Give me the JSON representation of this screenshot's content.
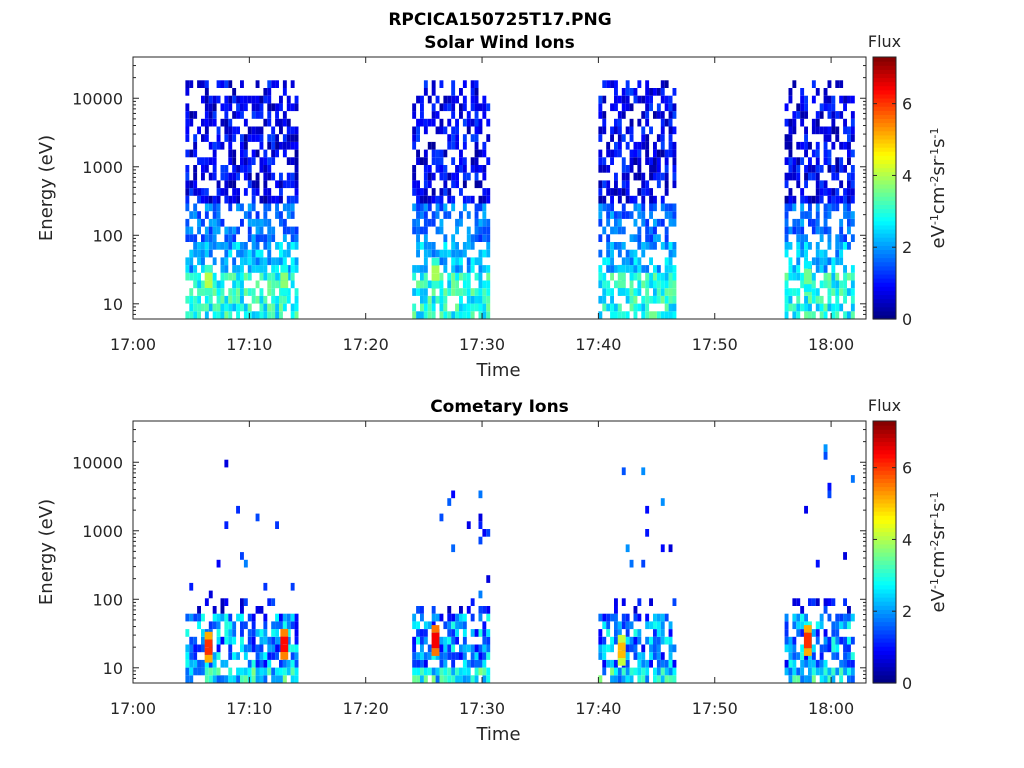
{
  "figure_title": "RPCICA150725T17.PNG",
  "panels": [
    {
      "title": "Solar Wind Ions",
      "ylabel": "Energy (eV)",
      "xlabel": "Time",
      "xticks": [
        "17:00",
        "17:10",
        "17:20",
        "17:30",
        "17:40",
        "17:50",
        "18:00"
      ],
      "yticks": [
        "10",
        "100",
        "1000",
        "10000"
      ],
      "colorbar": {
        "title": "Flux",
        "ticks": [
          "0",
          "2",
          "4",
          "6"
        ]
      }
    },
    {
      "title": "Cometary Ions",
      "ylabel": "Energy (eV)",
      "xlabel": "Time",
      "xticks": [
        "17:00",
        "17:10",
        "17:20",
        "17:30",
        "17:40",
        "17:50",
        "18:00"
      ],
      "yticks": [
        "10",
        "100",
        "1000",
        "10000"
      ],
      "colorbar": {
        "title": "Flux",
        "ticks": [
          "0",
          "2",
          "4",
          "6"
        ]
      }
    }
  ],
  "colorbar_units": [
    "eV",
    "-1",
    "cm",
    "-2",
    "sr",
    "-1",
    "s",
    "-1"
  ],
  "chart_data": [
    {
      "type": "heatmap",
      "title": "Solar Wind Ions",
      "xlabel": "Time",
      "ylabel": "Energy (eV)",
      "x_range": [
        "17:00",
        "18:03"
      ],
      "y_range_ev": [
        6,
        40000
      ],
      "y_scale": "log",
      "color_range": [
        0,
        7.3
      ],
      "colormap": "jet",
      "measurement_intervals": [
        [
          "17:04.5",
          "17:14"
        ],
        [
          "17:24",
          "17:30.5"
        ],
        [
          "17:40",
          "17:46.5"
        ],
        [
          "17:56",
          "18:02"
        ]
      ],
      "high_flux_spots": [
        {
          "time": "17:06.5",
          "energy_ev": 22,
          "flux": 4.5
        },
        {
          "time": "17:13",
          "energy_ev": 22,
          "flux": 4.2
        },
        {
          "time": "17:26",
          "energy_ev": 28,
          "flux": 4.4
        },
        {
          "time": "17:42",
          "energy_ev": 22,
          "flux": 3.8
        },
        {
          "time": "17:58",
          "energy_ev": 25,
          "flux": 4.0
        }
      ],
      "grid": false
    },
    {
      "type": "heatmap",
      "title": "Cometary Ions",
      "xlabel": "Time",
      "ylabel": "Energy (eV)",
      "x_range": [
        "17:00",
        "18:03"
      ],
      "y_range_ev": [
        6,
        40000
      ],
      "y_scale": "log",
      "color_range": [
        0,
        7.3
      ],
      "colormap": "jet",
      "measurement_intervals": [
        [
          "17:04.5",
          "17:14"
        ],
        [
          "17:24",
          "17:30.5"
        ],
        [
          "17:40",
          "17:46.5"
        ],
        [
          "17:56",
          "18:02"
        ]
      ],
      "high_flux_spots": [
        {
          "time": "17:06.5",
          "energy_ev": 20,
          "flux": 6.5
        },
        {
          "time": "17:13",
          "energy_ev": 22,
          "flux": 6.8
        },
        {
          "time": "17:26",
          "energy_ev": 25,
          "flux": 6.9
        },
        {
          "time": "17:42",
          "energy_ev": 18,
          "flux": 5.5
        },
        {
          "time": "17:58",
          "energy_ev": 25,
          "flux": 6.5
        }
      ],
      "grid": false
    }
  ]
}
